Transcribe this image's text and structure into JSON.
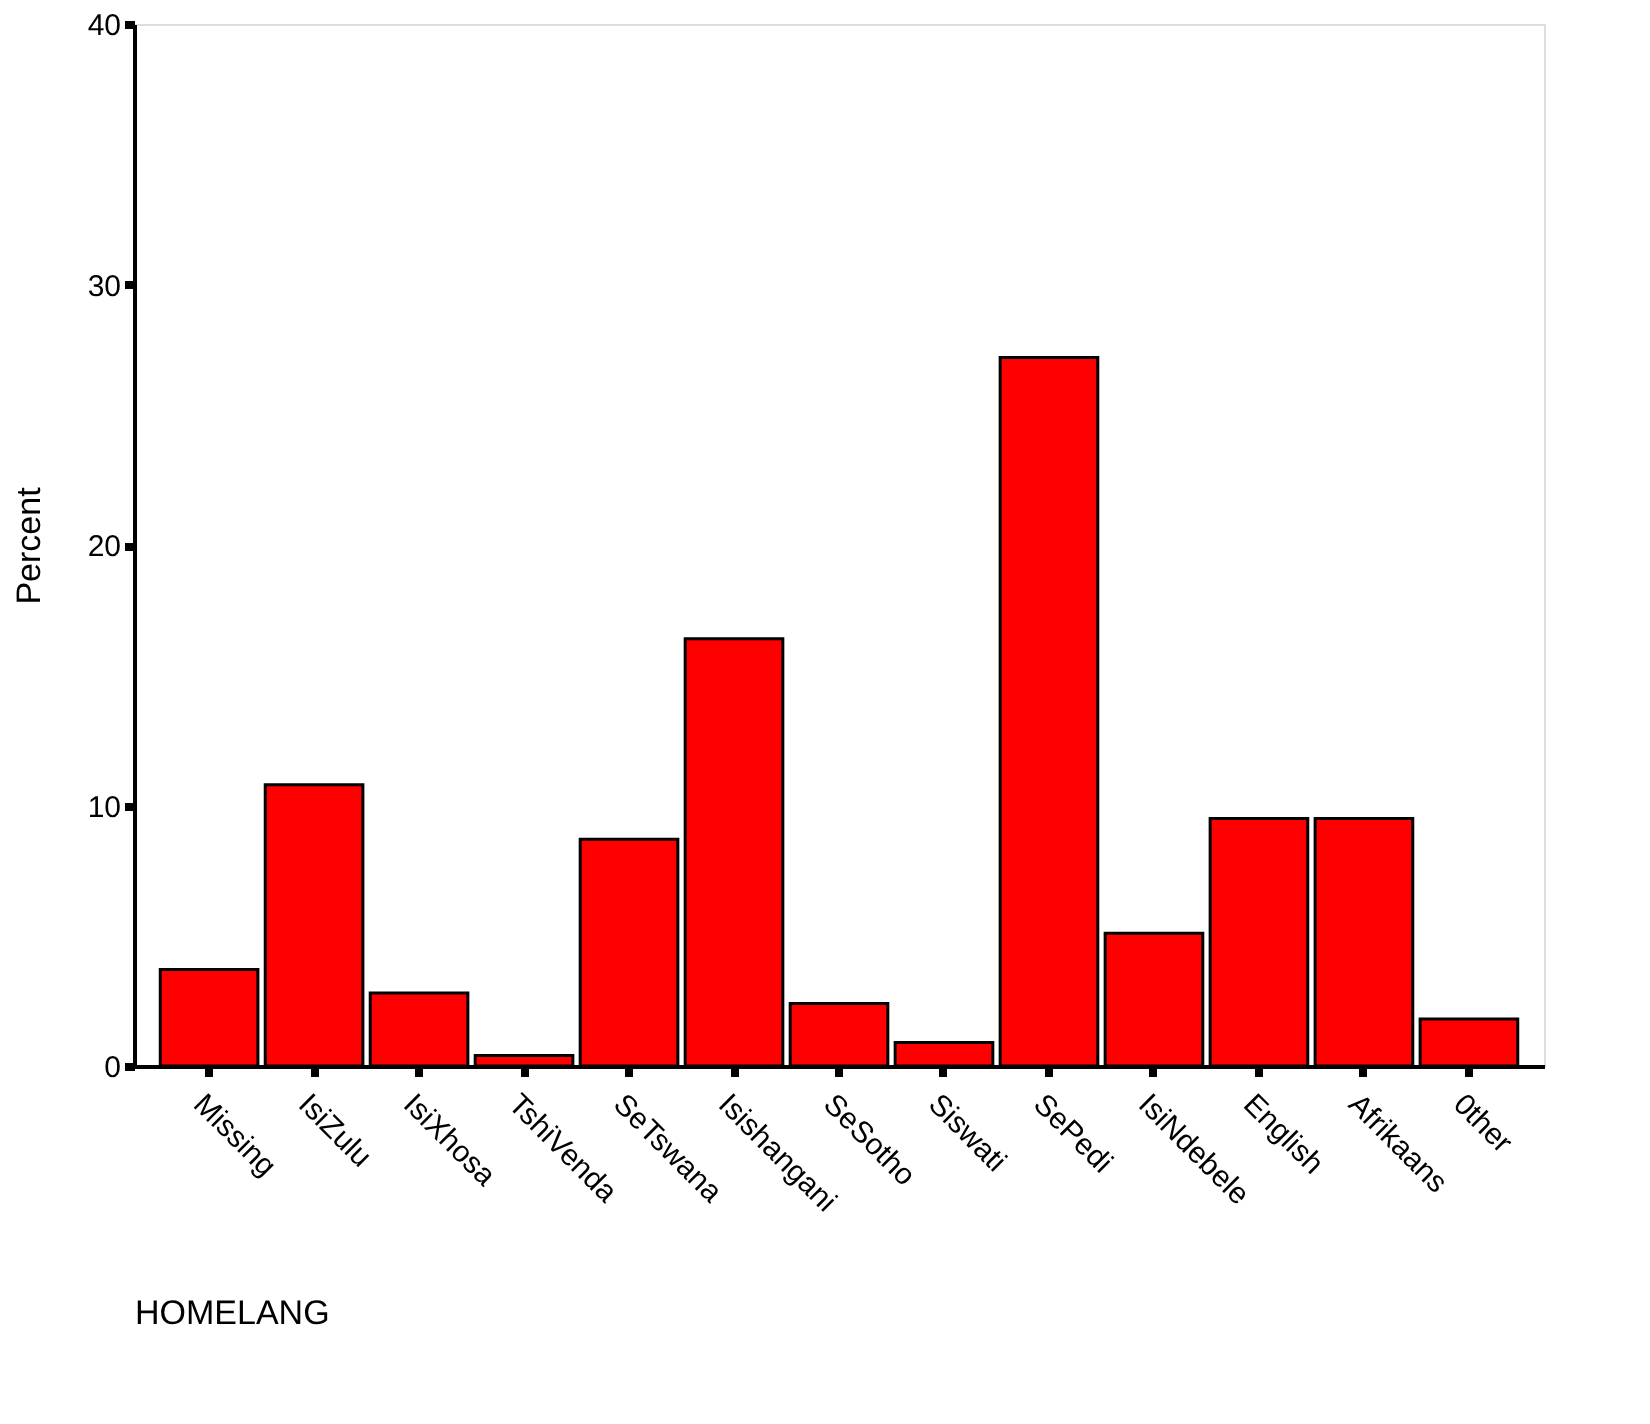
{
  "chart_data": {
    "type": "bar",
    "xlabel": "HOMELANG",
    "ylabel": "Percent",
    "categories": [
      "Missing",
      "IsiZulu",
      "IsiXhosa",
      "TshiVenda",
      "SeTswana",
      "Isishangani",
      "SeSotho",
      "Siswati",
      "SePedi",
      "IsiNdebele",
      "English",
      "Afrikaans",
      "0ther"
    ],
    "values": [
      3.7,
      10.8,
      2.8,
      0.4,
      8.7,
      16.4,
      2.4,
      0.9,
      27.2,
      5.1,
      9.5,
      9.5,
      1.8
    ],
    "color": "#ff0000",
    "ylim": [
      0,
      40
    ],
    "yticks": [
      0,
      10,
      20,
      30,
      40
    ],
    "grid": false
  }
}
